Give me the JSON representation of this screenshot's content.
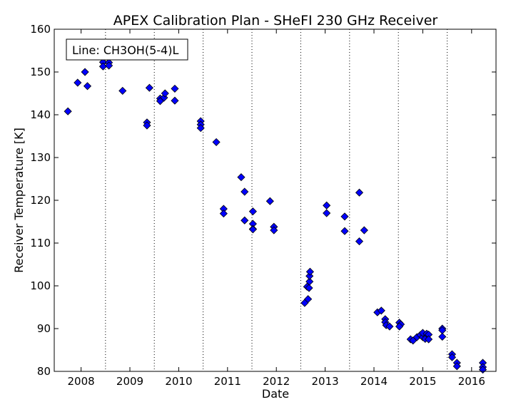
{
  "chart_data": {
    "type": "scatter",
    "title": "APEX Calibration Plan - SHeFI 230 GHz Receiver",
    "xlabel": "Date",
    "ylabel": "Receiver Temperature [K]",
    "annotation": "Line: CH3OH(5-4)L",
    "xlim": [
      2007.45,
      2016.5
    ],
    "ylim": [
      80,
      160
    ],
    "xticks": [
      2008,
      2009,
      2010,
      2011,
      2012,
      2013,
      2014,
      2015,
      2016
    ],
    "xtick_labels": [
      "2008",
      "2009",
      "2010",
      "2011",
      "2012",
      "2013",
      "2014",
      "2015",
      "2016"
    ],
    "yticks": [
      80,
      90,
      100,
      110,
      120,
      130,
      140,
      150,
      160
    ],
    "ytick_labels": [
      "80",
      "90",
      "100",
      "110",
      "120",
      "130",
      "140",
      "150",
      "160"
    ],
    "vlines": [
      2008.5,
      2009.5,
      2010.5,
      2011.5,
      2012.5,
      2013.5,
      2014.5,
      2015.5
    ],
    "marker_color": "#0000ff",
    "points": [
      [
        2007.73,
        140.8
      ],
      [
        2007.93,
        147.5
      ],
      [
        2008.08,
        150.0
      ],
      [
        2008.13,
        146.7
      ],
      [
        2008.45,
        152.3
      ],
      [
        2008.45,
        151.3
      ],
      [
        2008.57,
        152.2
      ],
      [
        2008.57,
        151.5
      ],
      [
        2008.85,
        145.6
      ],
      [
        2009.35,
        138.2
      ],
      [
        2009.35,
        137.5
      ],
      [
        2009.4,
        146.3
      ],
      [
        2009.62,
        143.8
      ],
      [
        2009.62,
        143.2
      ],
      [
        2009.7,
        144.0
      ],
      [
        2009.72,
        145.0
      ],
      [
        2009.92,
        146.1
      ],
      [
        2009.92,
        143.3
      ],
      [
        2010.45,
        138.5
      ],
      [
        2010.45,
        137.7
      ],
      [
        2010.45,
        136.9
      ],
      [
        2010.77,
        133.6
      ],
      [
        2010.92,
        118.0
      ],
      [
        2010.92,
        116.9
      ],
      [
        2011.28,
        125.4
      ],
      [
        2011.35,
        122.0
      ],
      [
        2011.35,
        115.3
      ],
      [
        2011.52,
        117.4
      ],
      [
        2011.52,
        114.5
      ],
      [
        2011.52,
        113.3
      ],
      [
        2011.52,
        113.2
      ],
      [
        2011.87,
        119.8
      ],
      [
        2011.95,
        113.8
      ],
      [
        2011.95,
        113.0
      ],
      [
        2012.58,
        96.0
      ],
      [
        2012.63,
        99.8
      ],
      [
        2012.65,
        96.9
      ],
      [
        2012.67,
        99.5
      ],
      [
        2012.68,
        101.0
      ],
      [
        2012.68,
        102.3
      ],
      [
        2012.69,
        103.3
      ],
      [
        2013.03,
        118.8
      ],
      [
        2013.03,
        117.0
      ],
      [
        2013.4,
        116.2
      ],
      [
        2013.4,
        112.8
      ],
      [
        2013.7,
        121.8
      ],
      [
        2013.7,
        110.4
      ],
      [
        2013.8,
        113.0
      ],
      [
        2014.07,
        93.8
      ],
      [
        2014.15,
        94.2
      ],
      [
        2014.23,
        92.2
      ],
      [
        2014.23,
        91.5
      ],
      [
        2014.25,
        90.8
      ],
      [
        2014.32,
        90.5
      ],
      [
        2014.52,
        91.4
      ],
      [
        2014.55,
        91.0
      ],
      [
        2014.52,
        90.5
      ],
      [
        2014.75,
        87.5
      ],
      [
        2014.8,
        87.2
      ],
      [
        2014.88,
        88.0
      ],
      [
        2014.95,
        88.5
      ],
      [
        2015.0,
        88.0
      ],
      [
        2015.0,
        89.0
      ],
      [
        2015.05,
        87.6
      ],
      [
        2015.08,
        88.8
      ],
      [
        2015.12,
        88.6
      ],
      [
        2015.12,
        87.5
      ],
      [
        2015.4,
        90.0
      ],
      [
        2015.4,
        89.6
      ],
      [
        2015.4,
        88.1
      ],
      [
        2015.6,
        84.0
      ],
      [
        2015.6,
        83.3
      ],
      [
        2015.7,
        82.0
      ],
      [
        2015.7,
        81.2
      ],
      [
        2016.23,
        82.0
      ],
      [
        2016.23,
        81.0
      ],
      [
        2016.23,
        80.4
      ]
    ]
  }
}
